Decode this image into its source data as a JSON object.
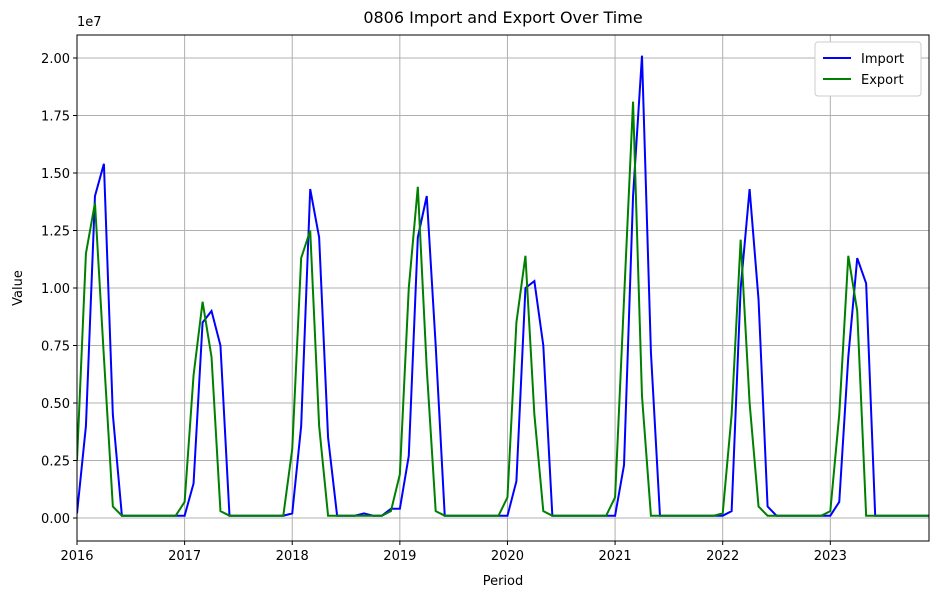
{
  "chart_data": {
    "type": "line",
    "title": "0806 Import and Export Over Time",
    "x_label": "Period",
    "y_label": "Value",
    "offset_label": "1e7",
    "x": [
      2016,
      2016.083,
      2016.167,
      2016.25,
      2016.333,
      2016.417,
      2016.5,
      2016.583,
      2016.667,
      2016.75,
      2016.833,
      2016.917,
      2017,
      2017.083,
      2017.167,
      2017.25,
      2017.333,
      2017.417,
      2017.5,
      2017.583,
      2017.667,
      2017.75,
      2017.833,
      2017.917,
      2018,
      2018.083,
      2018.167,
      2018.25,
      2018.333,
      2018.417,
      2018.5,
      2018.583,
      2018.667,
      2018.75,
      2018.833,
      2018.917,
      2019,
      2019.083,
      2019.167,
      2019.25,
      2019.333,
      2019.417,
      2019.5,
      2019.583,
      2019.667,
      2019.75,
      2019.833,
      2019.917,
      2020,
      2020.083,
      2020.167,
      2020.25,
      2020.333,
      2020.417,
      2020.5,
      2020.583,
      2020.667,
      2020.75,
      2020.833,
      2020.917,
      2021,
      2021.083,
      2021.167,
      2021.25,
      2021.333,
      2021.417,
      2021.5,
      2021.583,
      2021.667,
      2021.75,
      2021.833,
      2021.917,
      2022,
      2022.083,
      2022.167,
      2022.25,
      2022.333,
      2022.417,
      2022.5,
      2022.583,
      2022.667,
      2022.75,
      2022.833,
      2022.917,
      2023,
      2023.083,
      2023.167,
      2023.25,
      2023.333,
      2023.417,
      2023.5,
      2023.583,
      2023.667,
      2023.75,
      2023.833,
      2023.917
    ],
    "series": [
      {
        "name": "Import",
        "color": "#0000ff",
        "values": [
          0.02,
          0.4,
          1.4,
          1.54,
          0.45,
          0.01,
          0.01,
          0.01,
          0.01,
          0.01,
          0.01,
          0.01,
          0.01,
          0.15,
          0.85,
          0.9,
          0.75,
          0.01,
          0.01,
          0.01,
          0.01,
          0.01,
          0.01,
          0.01,
          0.02,
          0.4,
          1.43,
          1.22,
          0.35,
          0.01,
          0.01,
          0.01,
          0.02,
          0.01,
          0.01,
          0.04,
          0.04,
          0.27,
          1.22,
          1.4,
          0.75,
          0.01,
          0.01,
          0.01,
          0.01,
          0.01,
          0.01,
          0.01,
          0.01,
          0.16,
          1.0,
          1.03,
          0.75,
          0.01,
          0.01,
          0.01,
          0.01,
          0.01,
          0.01,
          0.01,
          0.01,
          0.23,
          1.4,
          2.01,
          0.72,
          0.01,
          0.01,
          0.01,
          0.01,
          0.01,
          0.01,
          0.01,
          0.01,
          0.03,
          1.0,
          1.43,
          0.95,
          0.05,
          0.01,
          0.01,
          0.01,
          0.01,
          0.01,
          0.01,
          0.01,
          0.07,
          0.7,
          1.13,
          1.02,
          0.01,
          0.01,
          0.01,
          0.01,
          0.01,
          0.01,
          0.01
        ]
      },
      {
        "name": "Export",
        "color": "#008000",
        "values": [
          0.25,
          1.15,
          1.37,
          0.7,
          0.05,
          0.01,
          0.01,
          0.01,
          0.01,
          0.01,
          0.01,
          0.01,
          0.07,
          0.62,
          0.94,
          0.7,
          0.03,
          0.01,
          0.01,
          0.01,
          0.01,
          0.01,
          0.01,
          0.01,
          0.3,
          1.13,
          1.25,
          0.4,
          0.01,
          0.01,
          0.01,
          0.01,
          0.01,
          0.01,
          0.01,
          0.03,
          0.19,
          1.0,
          1.44,
          0.65,
          0.03,
          0.01,
          0.01,
          0.01,
          0.01,
          0.01,
          0.01,
          0.01,
          0.09,
          0.85,
          1.14,
          0.45,
          0.03,
          0.01,
          0.01,
          0.01,
          0.01,
          0.01,
          0.01,
          0.01,
          0.09,
          0.95,
          1.81,
          0.53,
          0.01,
          0.01,
          0.01,
          0.01,
          0.01,
          0.01,
          0.01,
          0.01,
          0.02,
          0.45,
          1.21,
          0.5,
          0.05,
          0.01,
          0.01,
          0.01,
          0.01,
          0.01,
          0.01,
          0.01,
          0.03,
          0.45,
          1.14,
          0.9,
          0.01,
          0.01,
          0.01,
          0.01,
          0.01,
          0.01,
          0.01,
          0.01
        ]
      }
    ],
    "xlim": [
      2016,
      2023.917
    ],
    "ylim": [
      -0.1,
      2.1
    ],
    "xticks": [
      2016,
      2017,
      2018,
      2019,
      2020,
      2021,
      2022,
      2023
    ],
    "yticks": [
      {
        "value": 0,
        "label": "0.00"
      },
      0.25,
      {
        "value": 0.5,
        "label": "0.50"
      },
      0.75,
      {
        "value": 1,
        "label": "1.00"
      },
      1.25,
      {
        "value": 1.5,
        "label": "1.50"
      },
      1.75,
      {
        "value": 2,
        "label": "2.00"
      }
    ],
    "grid": true,
    "legend": "upper right"
  }
}
